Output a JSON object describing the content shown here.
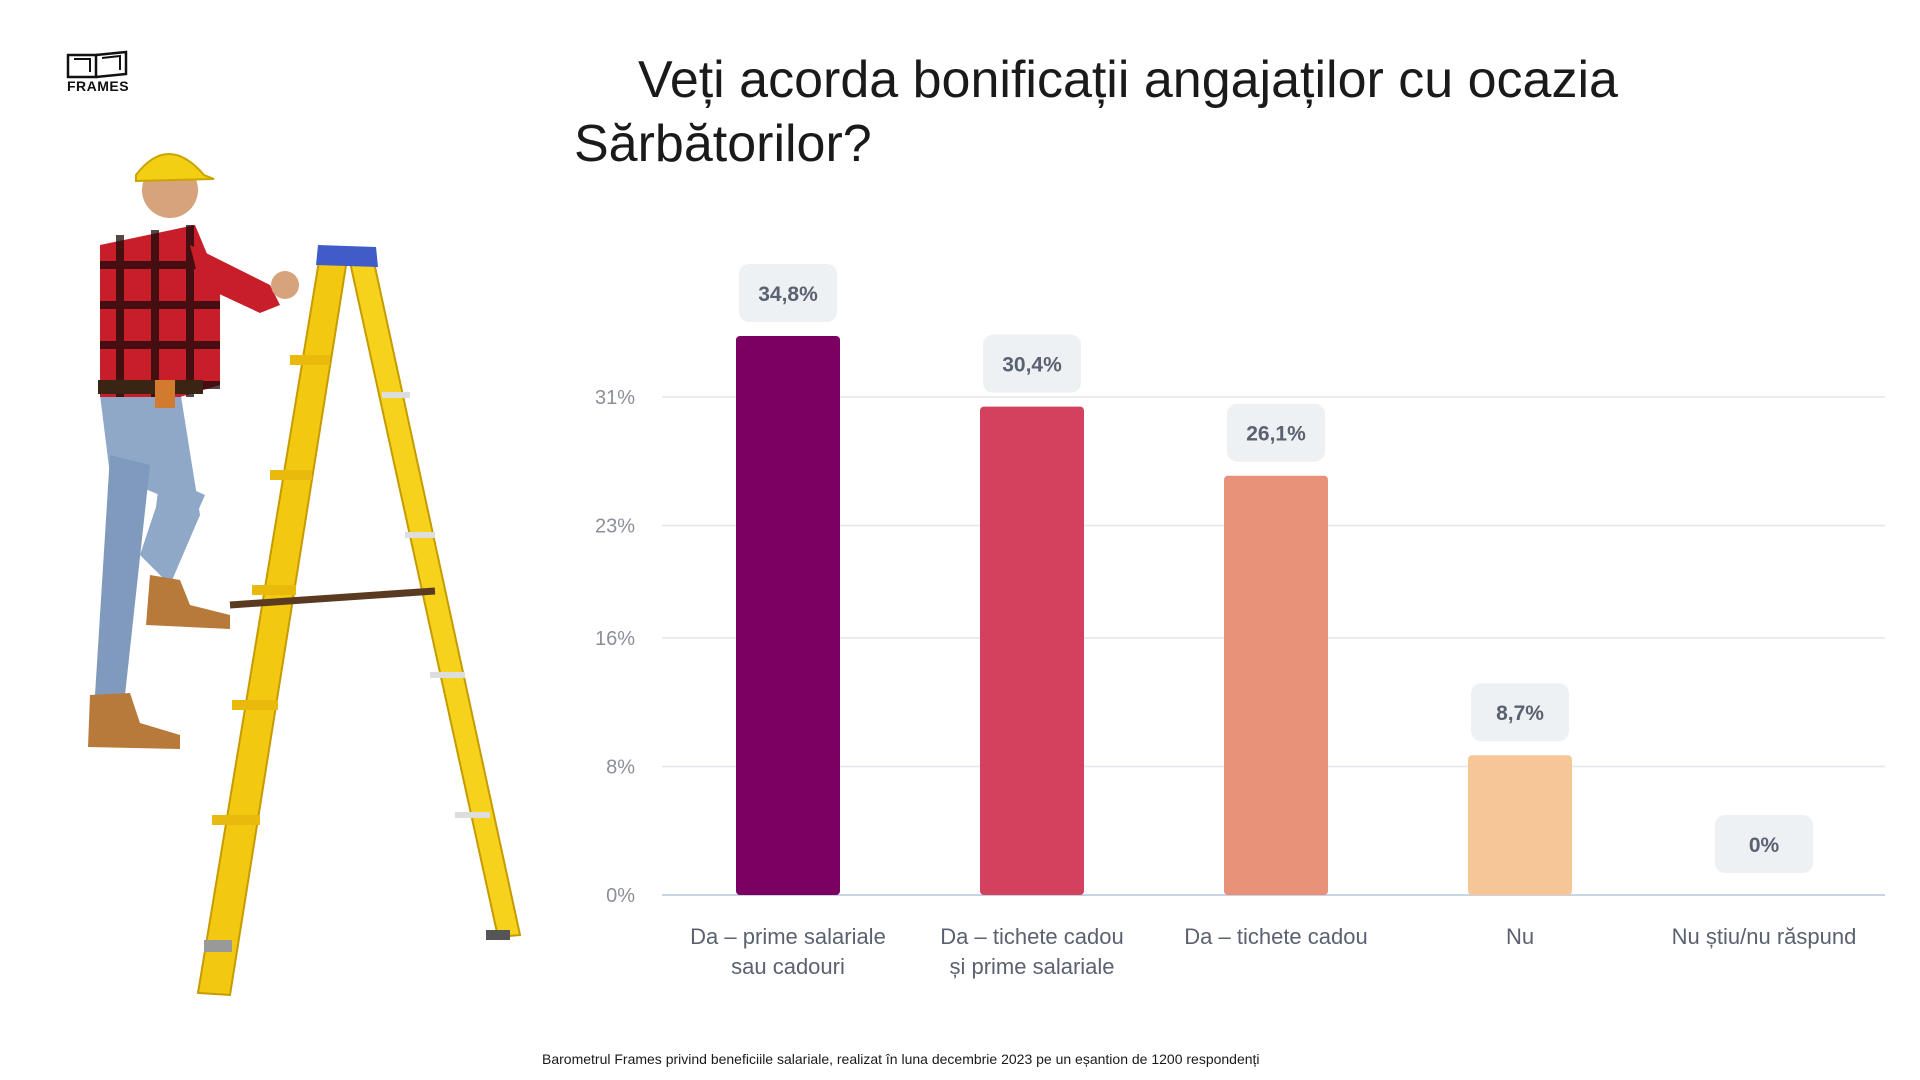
{
  "brand": {
    "logo_text": "FRAMES"
  },
  "title": {
    "line1": "Veți acorda bonificații angajaților cu ocazia",
    "line2": "Sărbătorilor?"
  },
  "illustration": {
    "subject": "worker-climbing-yellow-ladder"
  },
  "chart_data": {
    "type": "bar",
    "title": "Veți acorda bonificații angajaților cu ocazia Sărbătorilor?",
    "categories": [
      "Da – prime salariale\nsau cadouri",
      "Da – tichete cadou\nși prime salariale",
      "Da – tichete cadou",
      "Nu",
      "Nu știu/nu răspund"
    ],
    "values": [
      34.8,
      30.4,
      26.1,
      8.7,
      0
    ],
    "data_labels": [
      "34,8%",
      "30,4%",
      "26,1%",
      "8,7%",
      "0%"
    ],
    "colors": [
      "#7b0062",
      "#d3415e",
      "#e8927a",
      "#f6c697",
      "#f6c697"
    ],
    "yticks": [
      "0%",
      "8%",
      "16%",
      "23%",
      "31%"
    ],
    "ytick_values": [
      0,
      8,
      16,
      23,
      31
    ],
    "ylim": [
      0,
      31
    ],
    "grid": true,
    "legend": "none"
  },
  "footnote": "Barometrul Frames privind beneficiile salariale, realizat în luna decembrie 2023 pe un eșantion de 1200 respondenți"
}
